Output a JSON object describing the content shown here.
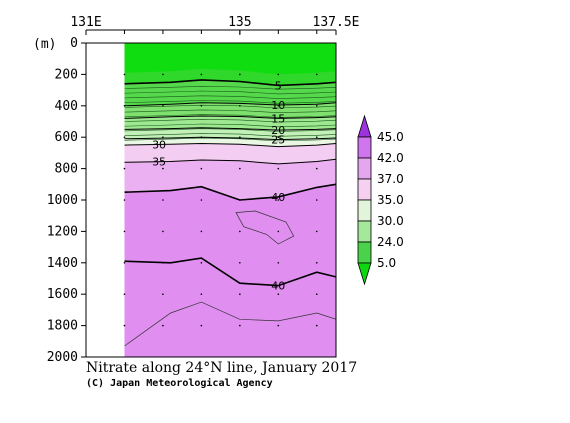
{
  "chart_data": {
    "type": "contour",
    "title": "Nitrate along 24°N line, January 2017",
    "credit": "(C) Japan Meteorological Agency",
    "ylabel": "(m)",
    "x_ticks": [
      {
        "lon": 131.0,
        "label": "131E"
      },
      {
        "lon": 135.0,
        "label": "135"
      },
      {
        "lon": 137.5,
        "label": "137.5E"
      }
    ],
    "xlim": [
      131.0,
      137.5
    ],
    "ylim": [
      0,
      2000
    ],
    "y_ticks": [
      0,
      200,
      400,
      600,
      800,
      1000,
      1200,
      1400,
      1600,
      1800,
      2000
    ],
    "stations_lon": [
      132.0,
      133.0,
      134.0,
      135.0,
      136.0,
      137.0
    ],
    "data_start_lon": 132.0,
    "legend_levels": [
      "45.0",
      "42.0",
      "37.0",
      "35.0",
      "30.0",
      "24.0",
      "5.0"
    ],
    "legend_colors": [
      "#9c33dd",
      "#cf75ee",
      "#e4a6ee",
      "#f5d0f0",
      "#e2f5da",
      "#a6e89a",
      "#4bd24b",
      "#0fd70f"
    ],
    "contours": [
      {
        "value": 5,
        "label": "5",
        "label_lon": 136.0,
        "depths": [
          260,
          250,
          235,
          245,
          270,
          260,
          250
        ],
        "lons": [
          132.0,
          133.2,
          134.0,
          135.0,
          136.0,
          137.0,
          137.5
        ]
      },
      {
        "value": 10,
        "label": "10",
        "label_lon": 136.0,
        "depths": [
          400,
          390,
          380,
          385,
          395,
          390,
          380
        ],
        "lons": [
          132.0,
          133.2,
          134.0,
          135.0,
          136.0,
          137.0,
          137.5
        ]
      },
      {
        "value": 15,
        "label": "15",
        "label_lon": 136.0,
        "depths": [
          480,
          470,
          465,
          468,
          480,
          475,
          470
        ],
        "lons": [
          132.0,
          133.2,
          134.0,
          135.0,
          136.0,
          137.0,
          137.5
        ]
      },
      {
        "value": 20,
        "label": "20",
        "label_lon": 136.0,
        "depths": [
          550,
          545,
          540,
          545,
          555,
          550,
          545
        ],
        "lons": [
          132.0,
          133.2,
          134.0,
          135.0,
          136.0,
          137.0,
          137.5
        ]
      },
      {
        "value": 25,
        "label": "25",
        "label_lon": 136.0,
        "depths": [
          610,
          605,
          600,
          605,
          615,
          610,
          605
        ],
        "lons": [
          132.0,
          133.2,
          134.0,
          135.0,
          136.0,
          137.0,
          137.5
        ]
      },
      {
        "value": 30,
        "label": "30",
        "label_lon": 132.9,
        "depths": [
          650,
          645,
          640,
          645,
          660,
          650,
          640
        ],
        "lons": [
          132.0,
          133.2,
          134.0,
          135.0,
          136.0,
          137.0,
          137.5
        ]
      },
      {
        "value": 35,
        "label": "35",
        "label_lon": 132.9,
        "depths": [
          760,
          755,
          745,
          750,
          770,
          755,
          740
        ],
        "lons": [
          132.0,
          133.2,
          134.0,
          135.0,
          136.0,
          137.0,
          137.5
        ]
      },
      {
        "value": 40,
        "label": "40",
        "label_lon": 136.0,
        "depths": [
          950,
          940,
          915,
          1000,
          980,
          920,
          900
        ],
        "lons": [
          132.0,
          133.2,
          134.0,
          135.0,
          136.0,
          137.0,
          137.5
        ]
      },
      {
        "value": 40,
        "label": "40",
        "label_lon": 136.0,
        "depths": [
          1390,
          1400,
          1370,
          1530,
          1545,
          1460,
          1490
        ],
        "lons": [
          132.0,
          133.2,
          134.0,
          135.0,
          136.0,
          137.0,
          137.5
        ]
      }
    ]
  }
}
